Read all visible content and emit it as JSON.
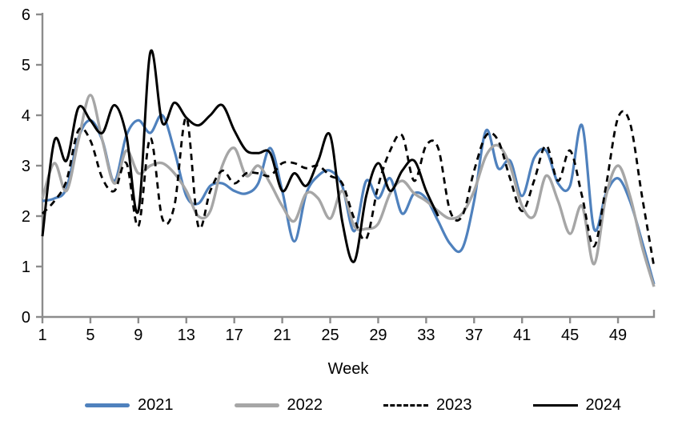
{
  "chart_data": {
    "type": "line",
    "title": "",
    "xlabel": "Week",
    "ylabel": "",
    "xlim": [
      1,
      52
    ],
    "ylim": [
      0,
      6
    ],
    "grid": false,
    "legend_position": "bottom",
    "axis_color": "#8C8C8C",
    "tick_label_color": "#000000",
    "x_ticks": [
      1,
      5,
      9,
      13,
      17,
      21,
      25,
      29,
      33,
      37,
      41,
      45,
      49
    ],
    "y_ticks": [
      0,
      1,
      2,
      3,
      4,
      5,
      6
    ],
    "x_unit": "week number, weekly points starting at week 1",
    "series": [
      {
        "name": "2021",
        "color": "#4F81BD",
        "style": "solid",
        "start_week": 1,
        "values": [
          2.3,
          2.35,
          2.55,
          3.55,
          3.9,
          3.5,
          2.7,
          3.6,
          3.9,
          3.65,
          4.0,
          3.3,
          2.4,
          2.25,
          2.6,
          2.65,
          2.5,
          2.45,
          2.65,
          3.35,
          2.5,
          1.5,
          2.45,
          2.8,
          2.9,
          2.6,
          1.7,
          2.7,
          2.35,
          2.75,
          2.05,
          2.45,
          2.35,
          1.9,
          1.45,
          1.35,
          2.3,
          3.7,
          2.95,
          3.1,
          2.4,
          3.15,
          3.3,
          2.65,
          2.6,
          3.8,
          1.75,
          2.45,
          2.75,
          2.3,
          1.5,
          0.65
        ]
      },
      {
        "name": "2022",
        "color": "#A6A6A6",
        "style": "solid",
        "start_week": 1,
        "values": [
          2.35,
          3.05,
          2.5,
          3.5,
          4.4,
          3.5,
          2.65,
          3.3,
          2.85,
          3.0,
          3.05,
          2.85,
          2.5,
          2.0,
          2.1,
          3.0,
          3.35,
          2.8,
          3.0,
          2.65,
          2.2,
          1.9,
          2.45,
          2.35,
          1.95,
          2.5,
          1.8,
          1.75,
          1.85,
          2.45,
          2.7,
          2.45,
          2.3,
          2.1,
          1.95,
          2.05,
          2.5,
          3.2,
          3.4,
          3.0,
          2.2,
          2.0,
          2.8,
          2.3,
          1.65,
          2.2,
          1.05,
          2.4,
          3.0,
          2.4,
          1.4,
          0.6
        ]
      },
      {
        "name": "2023",
        "color": "#000000",
        "style": "dashed",
        "start_week": 1,
        "values": [
          2.05,
          2.3,
          2.7,
          3.7,
          3.5,
          2.75,
          2.5,
          3.05,
          1.8,
          3.55,
          1.95,
          2.2,
          3.95,
          1.8,
          2.5,
          2.9,
          2.65,
          2.85,
          2.85,
          2.8,
          3.05,
          3.05,
          2.95,
          3.0,
          2.8,
          2.65,
          1.95,
          1.55,
          2.6,
          3.3,
          3.6,
          2.7,
          3.4,
          3.35,
          2.1,
          2.0,
          2.9,
          3.6,
          3.5,
          2.75,
          2.1,
          2.7,
          3.4,
          2.7,
          3.3,
          2.4,
          1.4,
          2.6,
          3.95,
          3.85,
          2.4,
          1.0
        ]
      },
      {
        "name": "2024",
        "color": "#000000",
        "style": "solid",
        "start_week": 1,
        "values": [
          1.6,
          3.5,
          3.1,
          4.15,
          3.9,
          3.65,
          4.2,
          3.6,
          2.1,
          5.25,
          3.85,
          4.25,
          3.95,
          3.8,
          4.0,
          4.2,
          3.7,
          3.3,
          3.25,
          3.25,
          2.5,
          2.85,
          2.6,
          3.1,
          3.6,
          1.9,
          1.1,
          2.4,
          3.05,
          2.5,
          2.9,
          3.1,
          2.5,
          2.0
        ]
      }
    ]
  },
  "legend": {
    "items": [
      "2021",
      "2022",
      "2023",
      "2024"
    ]
  }
}
